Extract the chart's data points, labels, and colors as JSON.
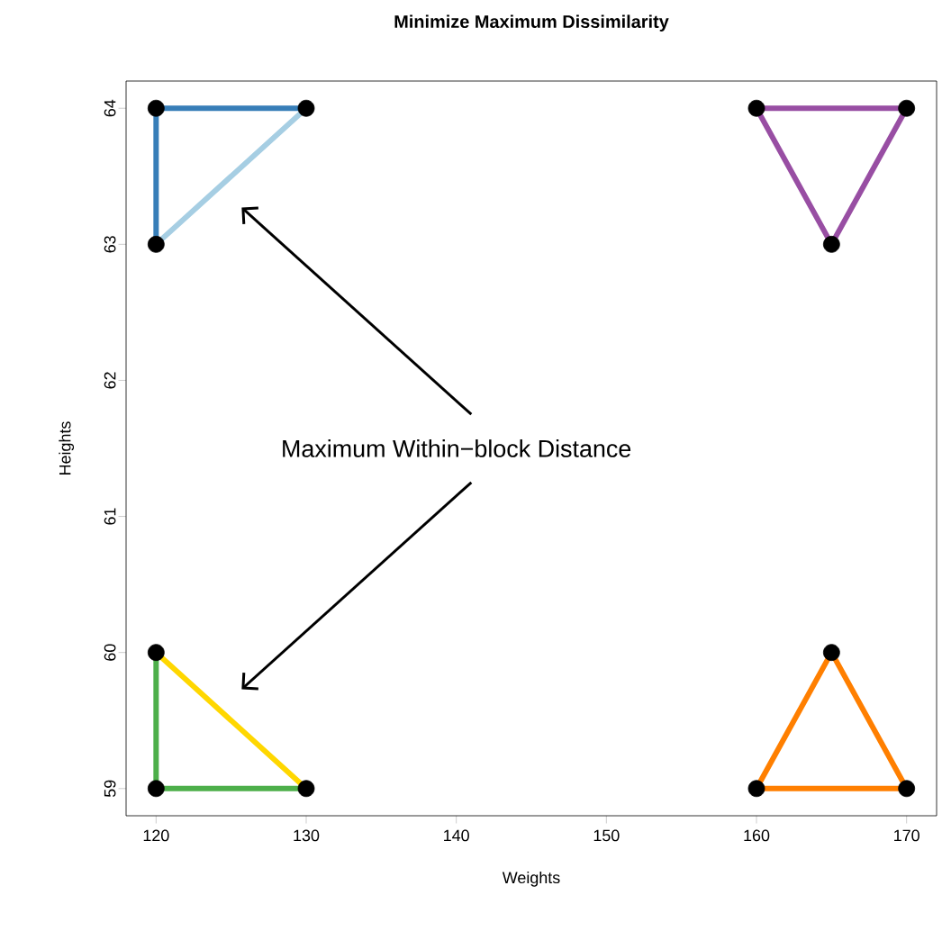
{
  "chart_data": {
    "type": "scatter",
    "title": "Minimize Maximum Dissimilarity",
    "xlabel": "Weights",
    "ylabel": "Heights",
    "xlim": [
      118,
      172
    ],
    "ylim": [
      58.8,
      64.2
    ],
    "xticks": [
      120,
      130,
      140,
      150,
      160,
      170
    ],
    "yticks": [
      59,
      60,
      61,
      62,
      63,
      64
    ],
    "annotations": [
      "Maximum Within−block Distance"
    ],
    "series": [
      {
        "type": "line",
        "color": "#a6cee3",
        "x": [
          120,
          130
        ],
        "values": [
          63,
          64
        ]
      },
      {
        "type": "line",
        "color": "#377eb8",
        "x": [
          120,
          120,
          130
        ],
        "values": [
          63,
          64,
          64
        ]
      },
      {
        "type": "line",
        "color": "#984ea3",
        "x": [
          160,
          170
        ],
        "values": [
          64,
          64
        ]
      },
      {
        "type": "line",
        "color": "#984ea3",
        "x": [
          160,
          165,
          170
        ],
        "values": [
          64,
          63,
          64
        ]
      },
      {
        "type": "line",
        "color": "#ffd700",
        "x": [
          120,
          130
        ],
        "values": [
          60,
          59
        ]
      },
      {
        "type": "line",
        "color": "#4daf4a",
        "x": [
          120,
          120,
          130
        ],
        "values": [
          60,
          59,
          59
        ]
      },
      {
        "type": "line",
        "color": "#ff7f00",
        "x": [
          160,
          170
        ],
        "values": [
          59,
          59
        ]
      },
      {
        "type": "line",
        "color": "#ff7f00",
        "x": [
          160,
          165,
          170
        ],
        "values": [
          59,
          60,
          59
        ]
      },
      {
        "type": "scatter",
        "color": "#000000",
        "x": [
          120,
          130,
          120,
          160,
          170,
          165,
          120,
          120,
          130,
          160,
          170,
          165
        ],
        "values": [
          64,
          64,
          63,
          64,
          64,
          63,
          60,
          59,
          59,
          59,
          59,
          60
        ],
        "marker": "circle"
      }
    ]
  }
}
